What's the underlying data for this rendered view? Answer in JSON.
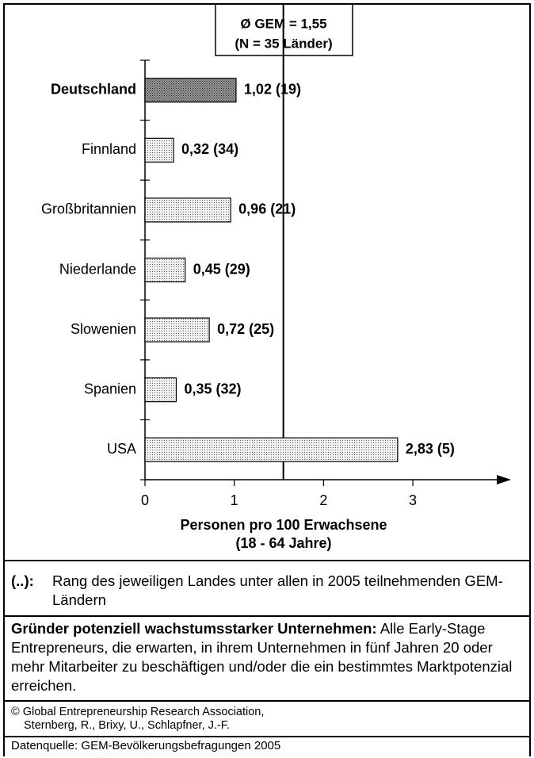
{
  "chart_data": {
    "type": "barh",
    "categories": [
      "Deutschland",
      "Finnland",
      "Großbritannien",
      "Niederlande",
      "Slowenien",
      "Spanien",
      "USA"
    ],
    "values": [
      1.02,
      0.32,
      0.96,
      0.45,
      0.72,
      0.35,
      2.83
    ],
    "value_labels": [
      "1,02 (19)",
      "0,32 (34)",
      "0,96 (21)",
      "0,45 (29)",
      "0,72 (25)",
      "0,35 (32)",
      "2,83 (5)"
    ],
    "colors": [
      "#9a9a9a",
      "#efefef",
      "#efefef",
      "#efefef",
      "#efefef",
      "#efefef",
      "#efefef"
    ],
    "highlight": "Deutschland",
    "xlim": [
      0,
      4.1
    ],
    "xticks": [
      0,
      1,
      2,
      3
    ],
    "xlabel": "Personen pro 100 Erwachsene",
    "xlabel_sub": "(18 - 64 Jahre)",
    "reference": {
      "value": 1.55,
      "label": "Ø GEM = 1,55",
      "sublabel": "(N = 35 Länder)"
    }
  },
  "notes": [
    {
      "term": "(..):",
      "text": "Rang des jeweiligen Landes unter allen in 2005 teilnehmenden GEM-Ländern"
    },
    {
      "term": "Gründer potenziell wachstumsstarker Unternehmen:",
      "text": "Alle Early-Stage Entrepreneurs, die erwarten, in ihrem Unternehmen in fünf Jahren 20 oder mehr Mitarbeiter zu beschäftigen und/oder die ein bestimmtes Marktpotenzial erreichen."
    }
  ],
  "copyright": [
    "© Global Entrepreneurship Research Association,",
    "Sternberg, R., Brixy, U., Schlapfner, J.-F."
  ],
  "source": "Datenquelle: GEM-Bevölkerungsbefragungen 2005"
}
